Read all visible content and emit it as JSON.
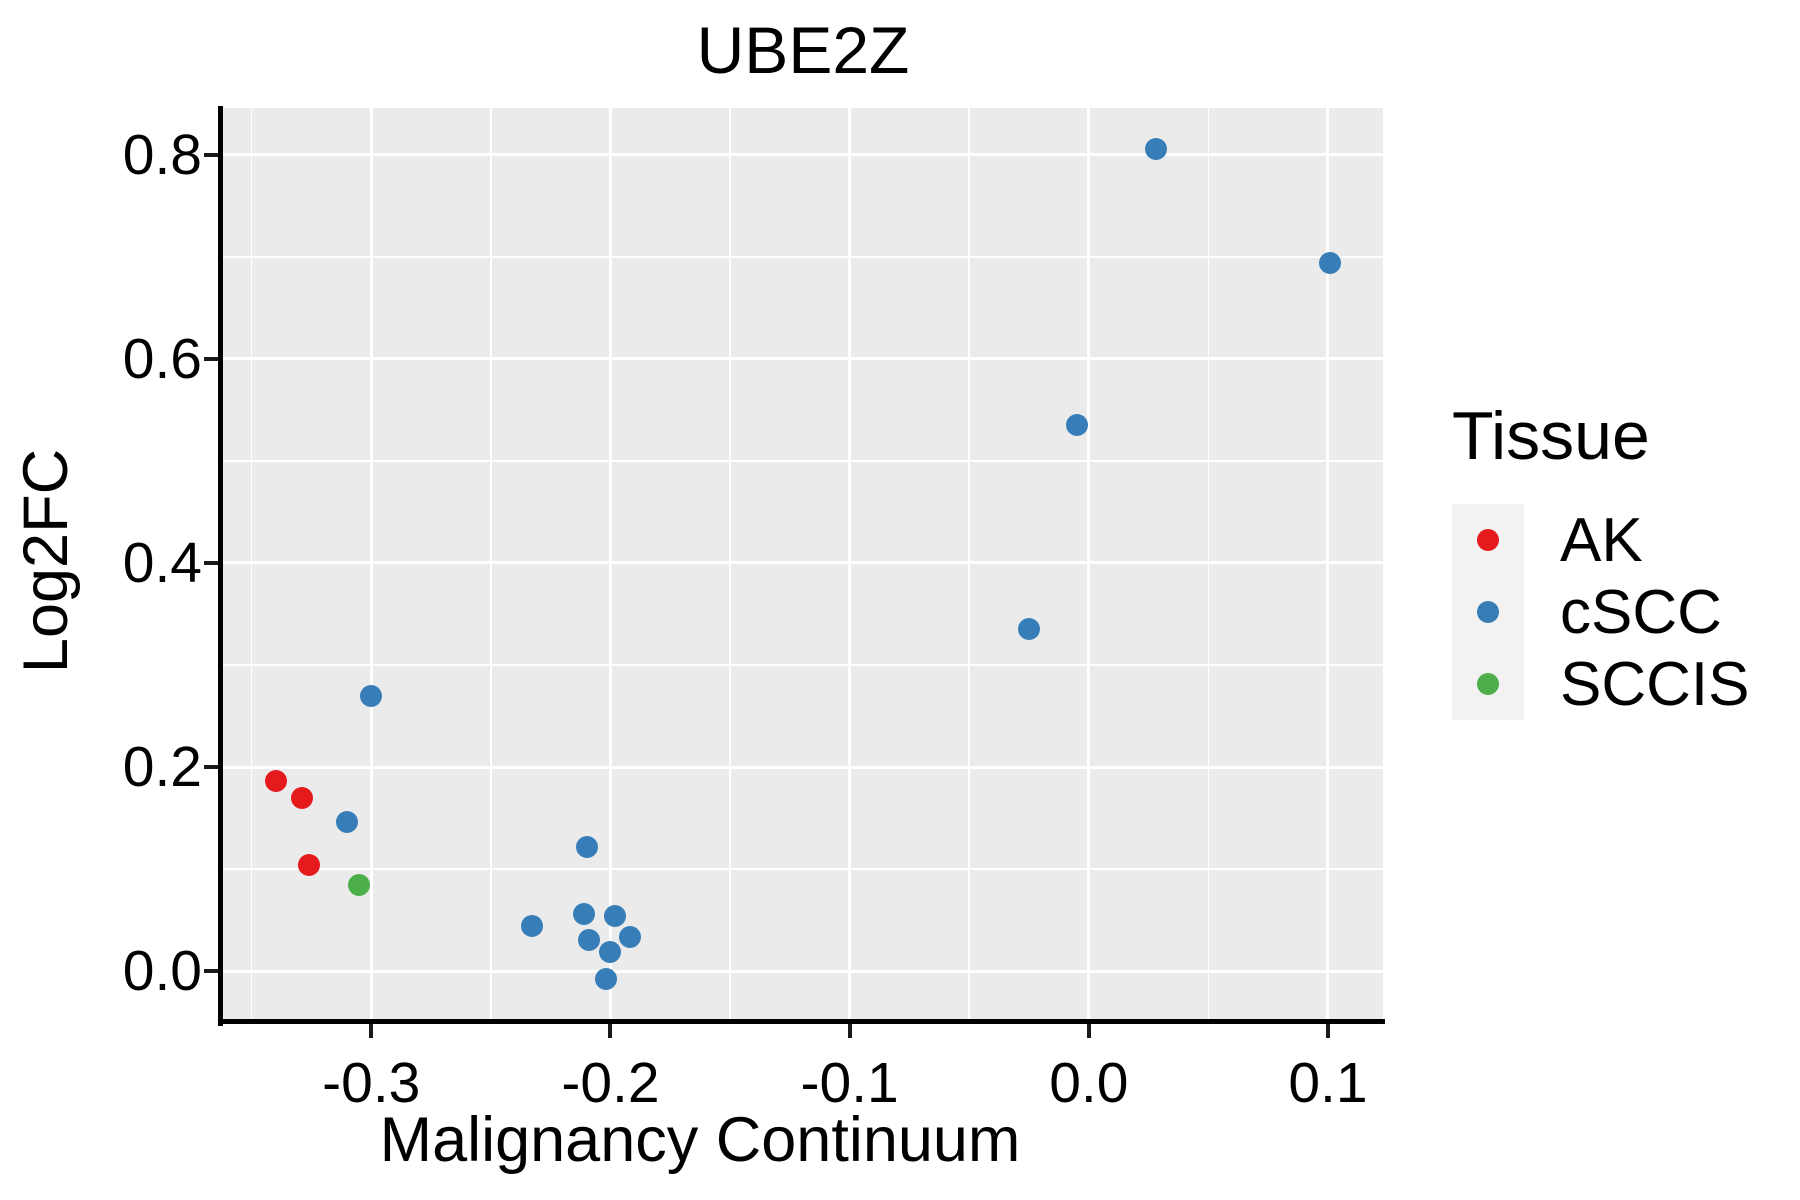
{
  "title": "UBE2Z",
  "axes": {
    "x": {
      "label": "Malignancy Continuum",
      "tick_labels": [
        "-0.3",
        "-0.2",
        "-0.1",
        "0.0",
        "0.1"
      ],
      "tick_values": [
        -0.3,
        -0.2,
        -0.1,
        0.0,
        0.1
      ],
      "minor_tick_values": [
        -0.35,
        -0.25,
        -0.15,
        -0.05,
        0.05
      ],
      "range": [
        -0.362,
        0.123
      ]
    },
    "y": {
      "label": "Log2FC",
      "tick_labels": [
        "0.0",
        "0.2",
        "0.4",
        "0.6",
        "0.8"
      ],
      "tick_values": [
        0.0,
        0.2,
        0.4,
        0.6,
        0.8
      ],
      "minor_tick_values": [
        0.1,
        0.3,
        0.5,
        0.7
      ],
      "range": [
        -0.047,
        0.846
      ]
    }
  },
  "legend": {
    "title": "Tissue",
    "items": [
      {
        "label": "AK",
        "color": "#E41A1C"
      },
      {
        "label": "cSCC",
        "color": "#377EB8"
      },
      {
        "label": "SCCIS",
        "color": "#4DAF4A"
      }
    ]
  },
  "style": {
    "panel_bg": "#EBEBEB",
    "grid_color": "#FFFFFF",
    "legend_key_bg": "#F2F2F2",
    "axis_color": "#000000",
    "text_color": "#000000"
  },
  "chart_data": {
    "type": "scatter",
    "title": "UBE2Z",
    "xlabel": "Malignancy Continuum",
    "ylabel": "Log2FC",
    "xlim": [
      -0.362,
      0.123
    ],
    "ylim": [
      -0.047,
      0.846
    ],
    "x_ticks": [
      -0.3,
      -0.2,
      -0.1,
      0.0,
      0.1
    ],
    "y_ticks": [
      0.0,
      0.2,
      0.4,
      0.6,
      0.8
    ],
    "grid": "white major and minor gridlines on grey panel",
    "legend_position": "right",
    "legend_title": "Tissue",
    "series": [
      {
        "name": "AK",
        "color": "#E41A1C",
        "points": [
          [
            -0.34,
            0.186
          ],
          [
            -0.329,
            0.17
          ],
          [
            -0.326,
            0.104
          ]
        ]
      },
      {
        "name": "cSCC",
        "color": "#377EB8",
        "points": [
          [
            -0.3,
            0.27
          ],
          [
            -0.31,
            0.146
          ],
          [
            -0.21,
            0.122
          ],
          [
            -0.233,
            0.044
          ],
          [
            -0.211,
            0.056
          ],
          [
            -0.198,
            0.054
          ],
          [
            -0.209,
            0.03
          ],
          [
            -0.192,
            0.033
          ],
          [
            -0.2,
            0.019
          ],
          [
            -0.202,
            -0.008
          ],
          [
            -0.025,
            0.335
          ],
          [
            -0.005,
            0.535
          ],
          [
            0.028,
            0.806
          ],
          [
            0.101,
            0.694
          ]
        ]
      },
      {
        "name": "SCCIS",
        "color": "#4DAF4A",
        "points": [
          [
            -0.305,
            0.084
          ]
        ]
      }
    ]
  }
}
